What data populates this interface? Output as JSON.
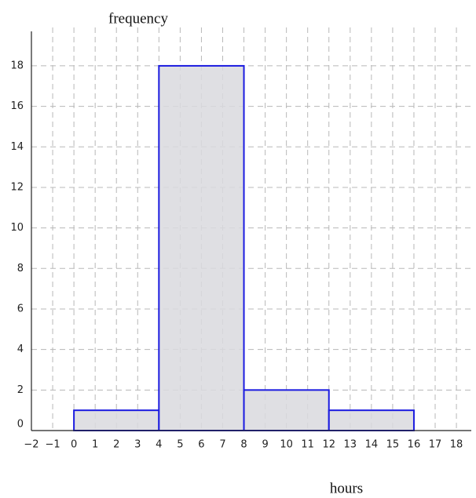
{
  "chart_data": {
    "type": "histogram",
    "xlabel": "hours",
    "ylabel": "frequency",
    "bins": [
      0,
      4,
      8,
      12,
      16
    ],
    "counts": [
      1,
      18,
      2,
      1
    ],
    "color": "#d9d9de",
    "edgecolor": "#1c1ce0",
    "xlim": [
      -2,
      18.7
    ],
    "ylim": [
      0,
      19.7
    ],
    "xticks": [
      {
        "value": -2,
        "label": "−2"
      },
      {
        "value": -1,
        "label": "−1"
      },
      0,
      1,
      2,
      3,
      4,
      5,
      6,
      7,
      8,
      9,
      10,
      11,
      12,
      13,
      14,
      15,
      16,
      17,
      18
    ],
    "yticks": [
      0,
      2,
      4,
      6,
      8,
      10,
      12,
      14,
      16,
      18
    ],
    "grid": true
  }
}
